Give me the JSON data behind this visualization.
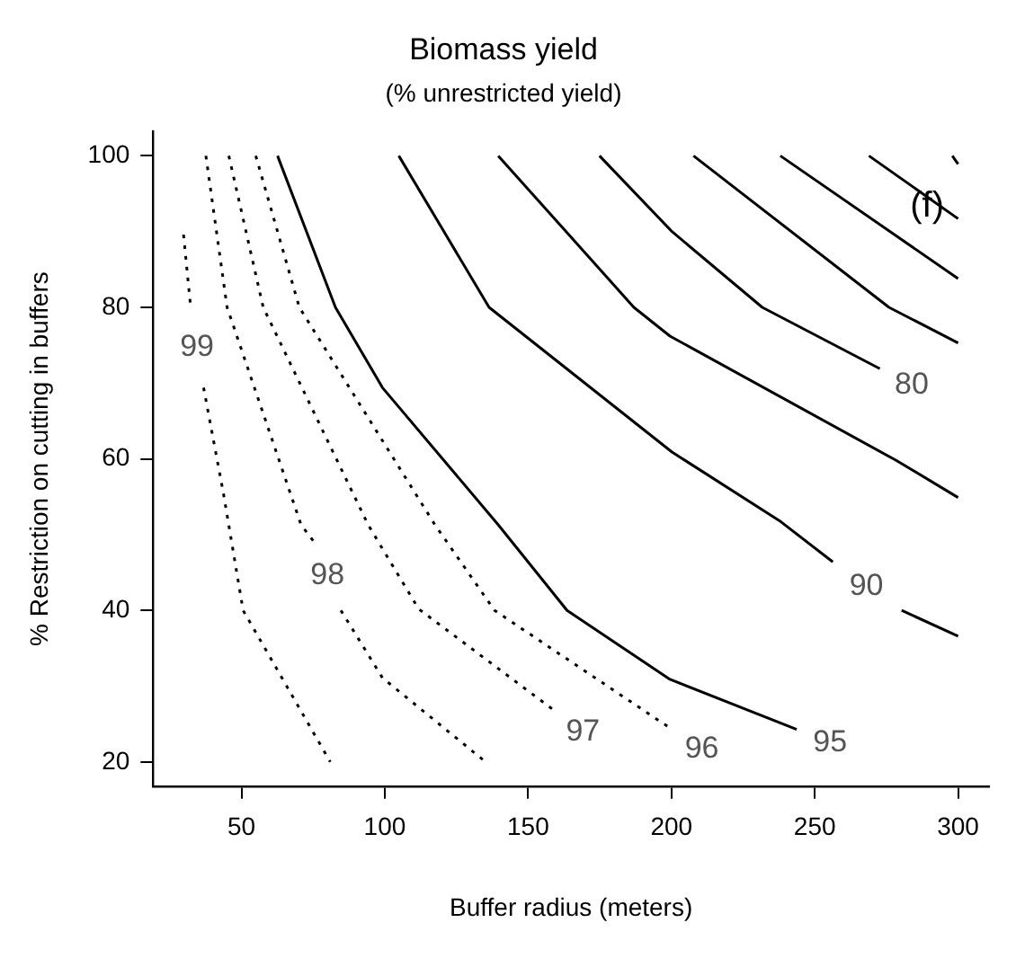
{
  "chart_data": {
    "type": "line",
    "title": "Biomass yield",
    "subtitle": "(% unrestricted yield)",
    "xlabel": "Buffer radius (meters)",
    "ylabel": "% Restriction on cutting in buffers",
    "xlim": [
      19.2,
      310.8
    ],
    "ylim": [
      16.8,
      103.2
    ],
    "xticks": [
      50,
      100,
      150,
      200,
      250,
      300
    ],
    "yticks": [
      20,
      40,
      60,
      80,
      100
    ],
    "grid": false,
    "legend": false,
    "marker": "none",
    "annotations": [
      "(f)"
    ],
    "series": [
      {
        "name": "99",
        "color": "#000000",
        "line_style": "dotted",
        "x": [
          29.8,
          32.3,
          34.5,
          36.8,
          43.7,
          50.6,
          81
        ],
        "values": [
          89.6,
          80,
          null,
          69.4,
          55.5,
          40,
          20
        ]
      },
      {
        "name": "98",
        "color": "#000000",
        "line_style": "dotted",
        "x": [
          37.6,
          45,
          70.8,
          75.2,
          80,
          84.7,
          99.2,
          135.2
        ],
        "values": [
          100,
          80,
          51.3,
          49.1,
          null,
          40,
          31.1,
          20
        ]
      },
      {
        "name": "97",
        "color": "#000000",
        "line_style": "dotted",
        "x": [
          45.6,
          57.6,
          94.2,
          111.8,
          159.1
        ],
        "values": [
          100,
          80,
          51.3,
          40.2,
          26.8
        ]
      },
      {
        "name": "96",
        "color": "#000000",
        "line_style": "dotted",
        "x": [
          55,
          70.2,
          117.5,
          138.3,
          200.2
        ],
        "values": [
          100,
          80,
          51.3,
          40,
          24.3
        ]
      },
      {
        "name": "95",
        "color": "#000000",
        "line_style": "solid",
        "x": [
          62.6,
          82.8,
          99.2,
          139.6,
          163.6,
          199.5,
          243.7
        ],
        "values": [
          100,
          80,
          69.4,
          51.3,
          40,
          30.9,
          24.3
        ]
      },
      {
        "name": "90",
        "color": "#000000",
        "line_style": "solid",
        "x": [
          104.9,
          136.4,
          200.2,
          238.2,
          256.3,
          268,
          280.3,
          300
        ],
        "values": [
          100,
          80,
          60.9,
          51.7,
          46.4,
          null,
          40,
          36.6
        ]
      },
      {
        "color": "#000000",
        "line_style": "solid",
        "x": [
          139.6,
          186.9,
          199.5,
          278.4,
          300
        ],
        "values": [
          100,
          80,
          76.2,
          59.8,
          54.9
        ]
      },
      {
        "name": "80",
        "color": "#000000",
        "line_style": "solid",
        "x": [
          174.9,
          200.2,
          231.7,
          272.7
        ],
        "values": [
          100,
          90,
          80,
          71.9
        ]
      },
      {
        "color": "#000000",
        "line_style": "solid",
        "x": [
          207.7,
          275.9,
          300
        ],
        "values": [
          100,
          80,
          75.3
        ]
      },
      {
        "color": "#000000",
        "line_style": "solid",
        "x": [
          238,
          300
        ],
        "values": [
          100,
          83.8
        ]
      },
      {
        "color": "#000000",
        "line_style": "solid",
        "x": [
          268.9,
          300
        ],
        "values": [
          100,
          91.7
        ]
      },
      {
        "color": "#000000",
        "line_style": "solid",
        "x": [
          298,
          300
        ],
        "values": [
          100,
          98.9
        ]
      }
    ]
  }
}
